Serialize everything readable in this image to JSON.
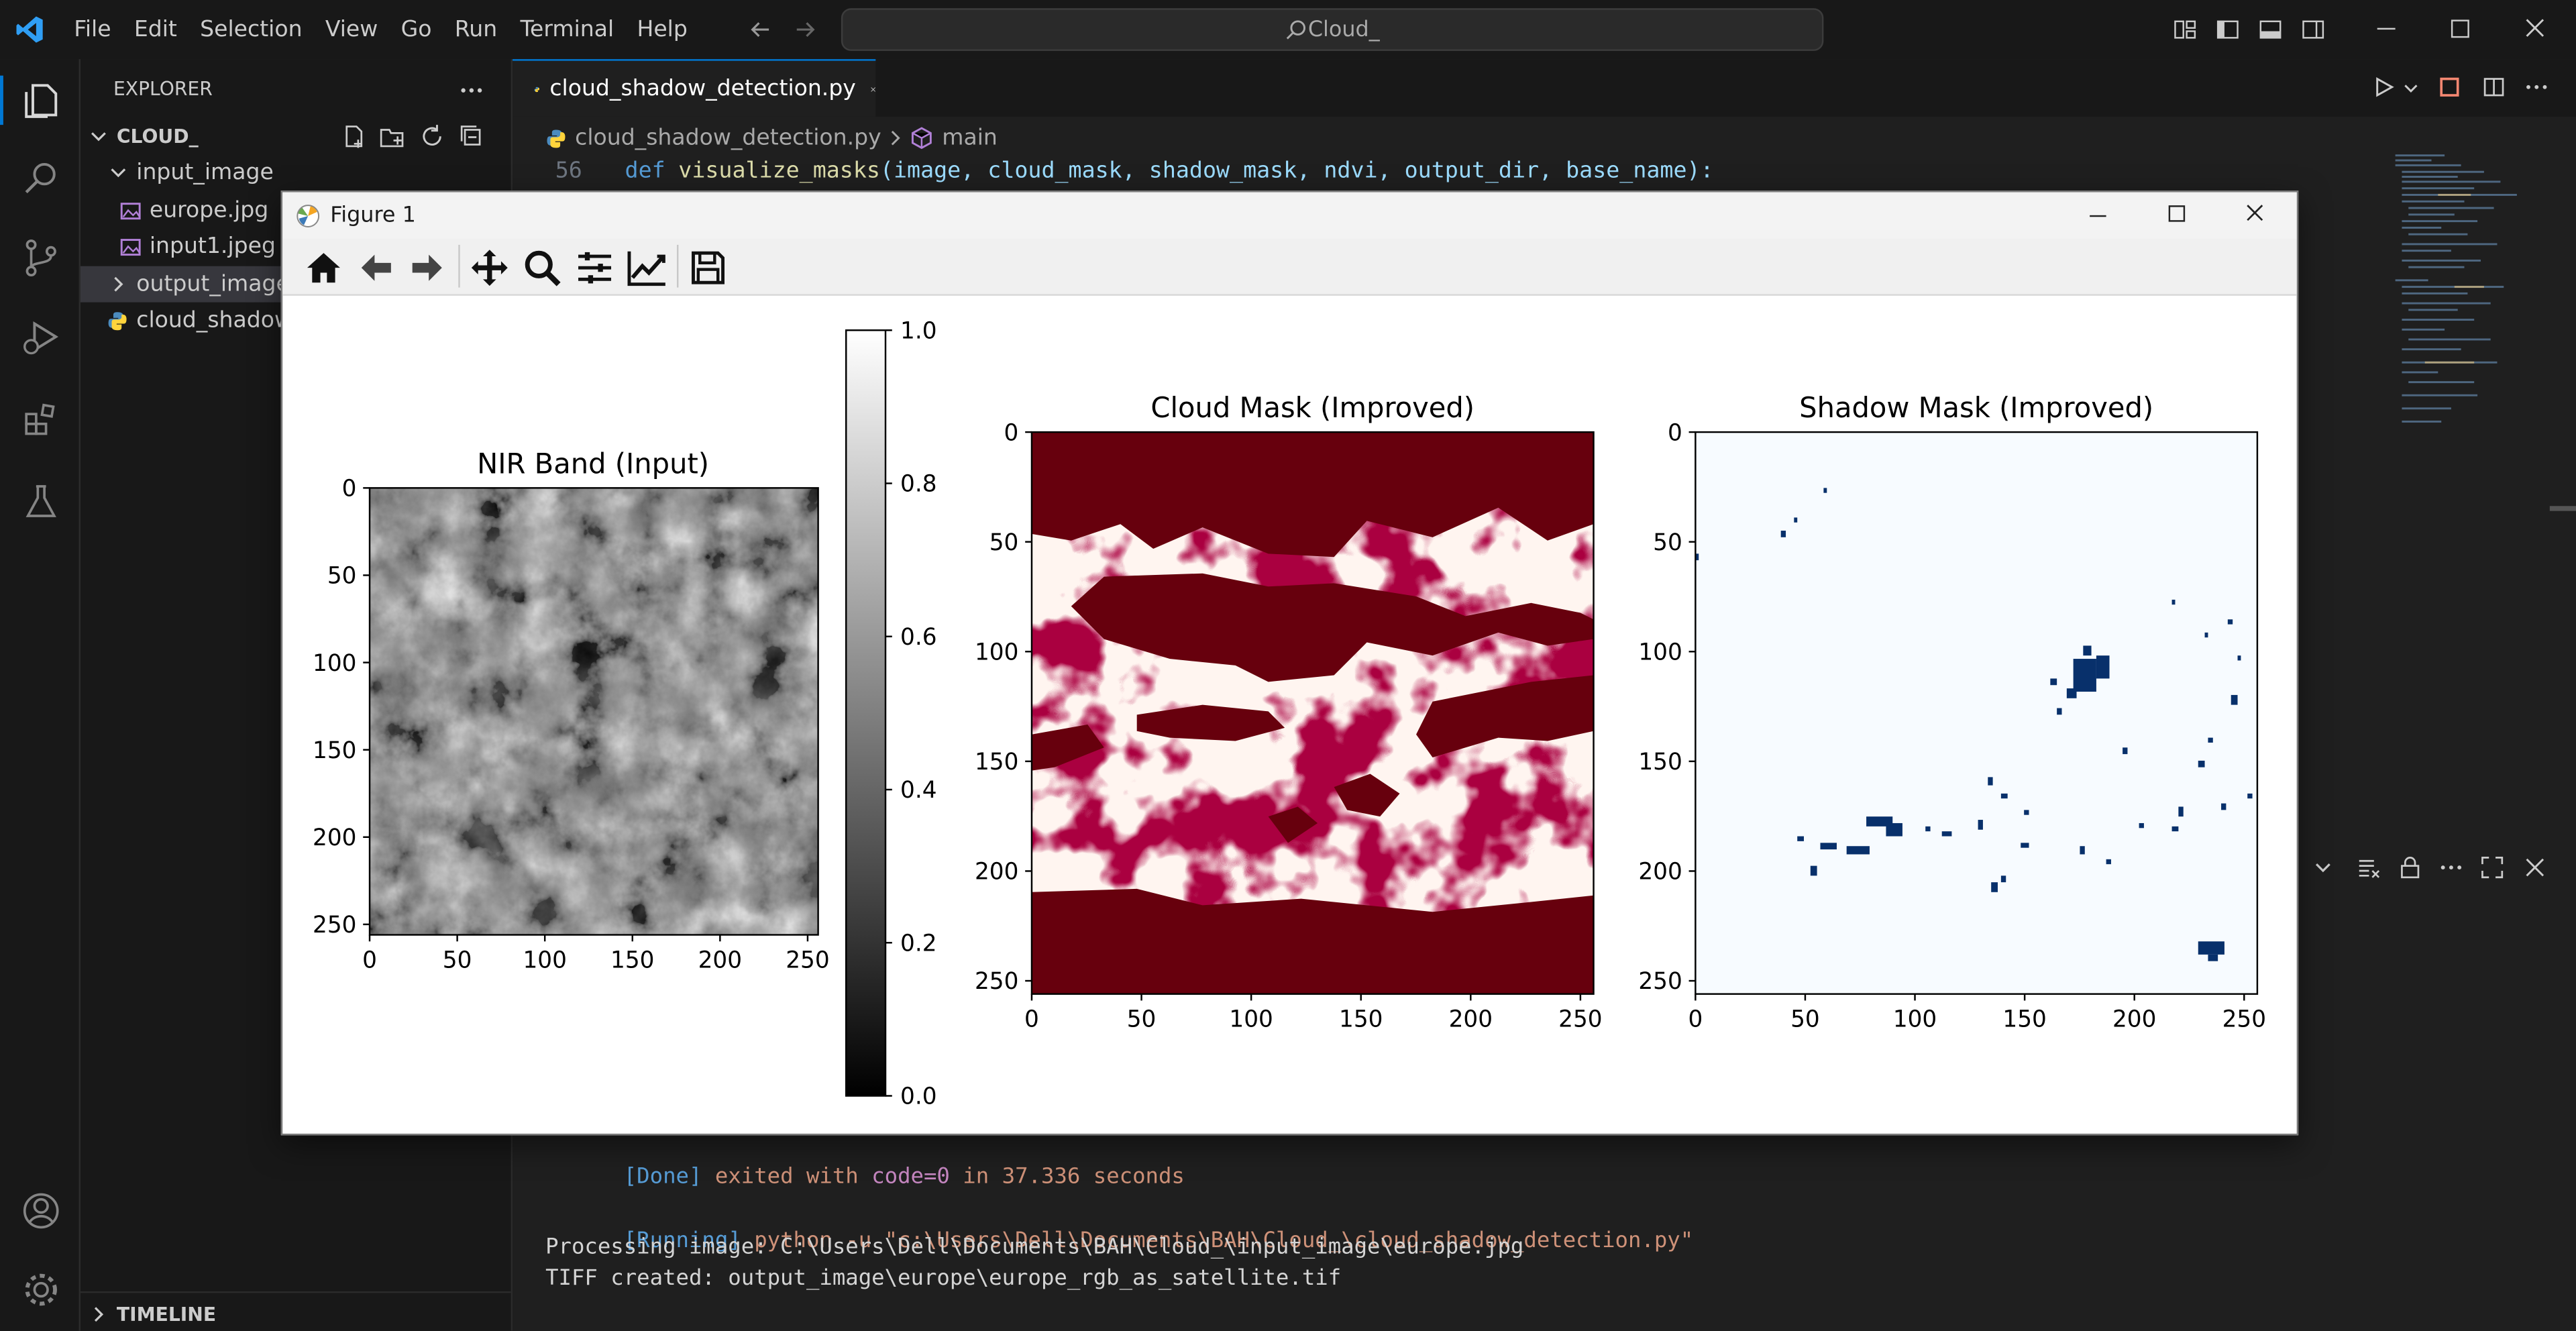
{
  "menubar": {
    "items": [
      "File",
      "Edit",
      "Selection",
      "View",
      "Go",
      "Run",
      "Terminal",
      "Help"
    ],
    "search": "Cloud_"
  },
  "explorer": {
    "header": "EXPLORER",
    "root": "CLOUD_",
    "tree": [
      {
        "label": "input_image",
        "type": "folder-open",
        "depth": 1
      },
      {
        "label": "europe.jpg",
        "type": "image",
        "depth": 2
      },
      {
        "label": "input1.jpeg",
        "type": "image",
        "depth": 2
      },
      {
        "label": "output_image",
        "type": "folder-closed",
        "depth": 1,
        "selected": true
      },
      {
        "label": "cloud_shadow_",
        "type": "python",
        "depth": 1
      }
    ],
    "timeline": "TIMELINE"
  },
  "editor": {
    "tab": "cloud_shadow_detection.py",
    "breadcrumb": {
      "file": "cloud_shadow_detection.py",
      "symbol": "main"
    },
    "line_number": "56",
    "code": {
      "kw": "def",
      "fn": "visualize_masks",
      "params": "(image, cloud_mask, shadow_mask, ndvi, output_dir, base_name):"
    }
  },
  "terminal": {
    "lines": [
      {
        "tag": "[Done]",
        "text": " exited with ",
        "code": "code=0",
        "rest": " in 37.336 seconds"
      },
      {
        "tag": "[Running]",
        "text": " python -u \"c:\\Users\\Dell\\Documents\\BAH\\Cloud_\\cloud_shadow_detection.py\""
      },
      {
        "text": "Processing image: C:\\Users\\Dell\\Documents\\BAH\\Cloud_\\input_image\\europe.jpg"
      },
      {
        "text": "TIFF created: output_image\\europe\\europe_rgb_as_satellite.tif"
      }
    ]
  },
  "figure": {
    "window_title": "Figure 1",
    "toolbar": [
      "home-icon",
      "back-icon",
      "forward-icon",
      "pan-icon",
      "zoom-icon",
      "configure-subplots-icon",
      "edit-axis-icon",
      "save-icon"
    ]
  },
  "colors": {
    "accent": "#0078d4",
    "cloud": "#67000d",
    "cloud_bg": "#fff5f0",
    "shadow": "#08306b",
    "shadow_bg": "#f7fbff"
  },
  "chart_data": [
    {
      "type": "heatmap",
      "title": "NIR Band (Input)",
      "xlim": [
        0,
        256
      ],
      "ylim": [
        256,
        0
      ],
      "xticks": [
        0,
        50,
        100,
        150,
        200,
        250
      ],
      "yticks": [
        0,
        50,
        100,
        150,
        200,
        250
      ],
      "colormap": "gray",
      "colorbar": {
        "ticks": [
          "0.0",
          "0.2",
          "0.4",
          "0.6",
          "0.8",
          "1.0"
        ],
        "range": [
          0,
          1
        ]
      }
    },
    {
      "type": "heatmap",
      "title": "Cloud Mask (Improved)",
      "xlim": [
        0,
        256
      ],
      "ylim": [
        256,
        0
      ],
      "xticks": [
        0,
        50,
        100,
        150,
        200,
        250
      ],
      "yticks": [
        0,
        50,
        100,
        150,
        200,
        250
      ],
      "colormap": "Reds"
    },
    {
      "type": "heatmap",
      "title": "Shadow Mask (Improved)",
      "xlim": [
        0,
        256
      ],
      "ylim": [
        256,
        0
      ],
      "xticks": [
        0,
        50,
        100,
        150,
        200,
        250
      ],
      "yticks": [
        0,
        50,
        100,
        150,
        200,
        250
      ],
      "colormap": "Blues"
    }
  ]
}
